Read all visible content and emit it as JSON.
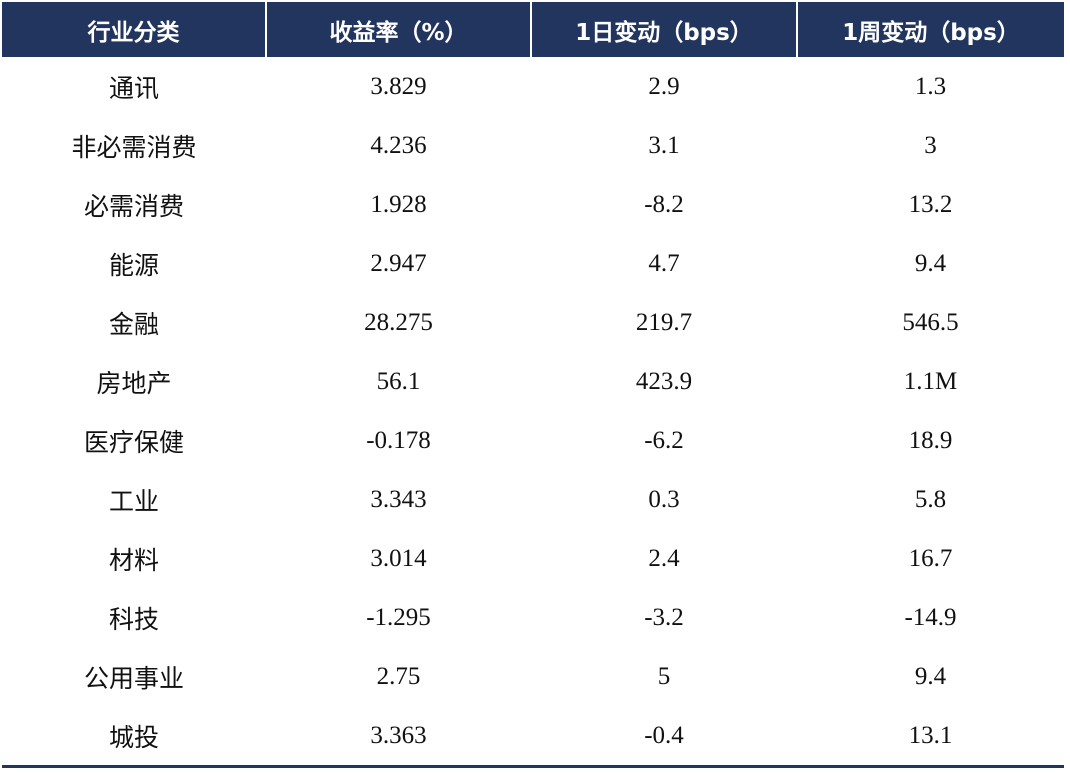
{
  "table": {
    "headers": [
      "行业分类",
      "收益率（%）",
      "1日变动（bps）",
      "1周变动（bps）"
    ],
    "rows": [
      {
        "category": "通讯",
        "yield": "3.829",
        "d1": "2.9",
        "w1": "1.3"
      },
      {
        "category": "非必需消费",
        "yield": "4.236",
        "d1": "3.1",
        "w1": "3"
      },
      {
        "category": "必需消费",
        "yield": "1.928",
        "d1": "-8.2",
        "w1": "13.2"
      },
      {
        "category": "能源",
        "yield": "2.947",
        "d1": "4.7",
        "w1": "9.4"
      },
      {
        "category": "金融",
        "yield": "28.275",
        "d1": "219.7",
        "w1": "546.5"
      },
      {
        "category": "房地产",
        "yield": "56.1",
        "d1": "423.9",
        "w1": "1.1M"
      },
      {
        "category": "医疗保健",
        "yield": "-0.178",
        "d1": "-6.2",
        "w1": "18.9"
      },
      {
        "category": "工业",
        "yield": "3.343",
        "d1": "0.3",
        "w1": "5.8"
      },
      {
        "category": "材料",
        "yield": "3.014",
        "d1": "2.4",
        "w1": "16.7"
      },
      {
        "category": "科技",
        "yield": "-1.295",
        "d1": "-3.2",
        "w1": "-14.9"
      },
      {
        "category": "公用事业",
        "yield": "2.75",
        "d1": "5",
        "w1": "9.4"
      },
      {
        "category": "城投",
        "yield": "3.363",
        "d1": "-0.4",
        "w1": "13.1"
      }
    ]
  },
  "colors": {
    "header_background": "#22355e",
    "header_text": "#ffffff",
    "body_text": "#111111"
  }
}
